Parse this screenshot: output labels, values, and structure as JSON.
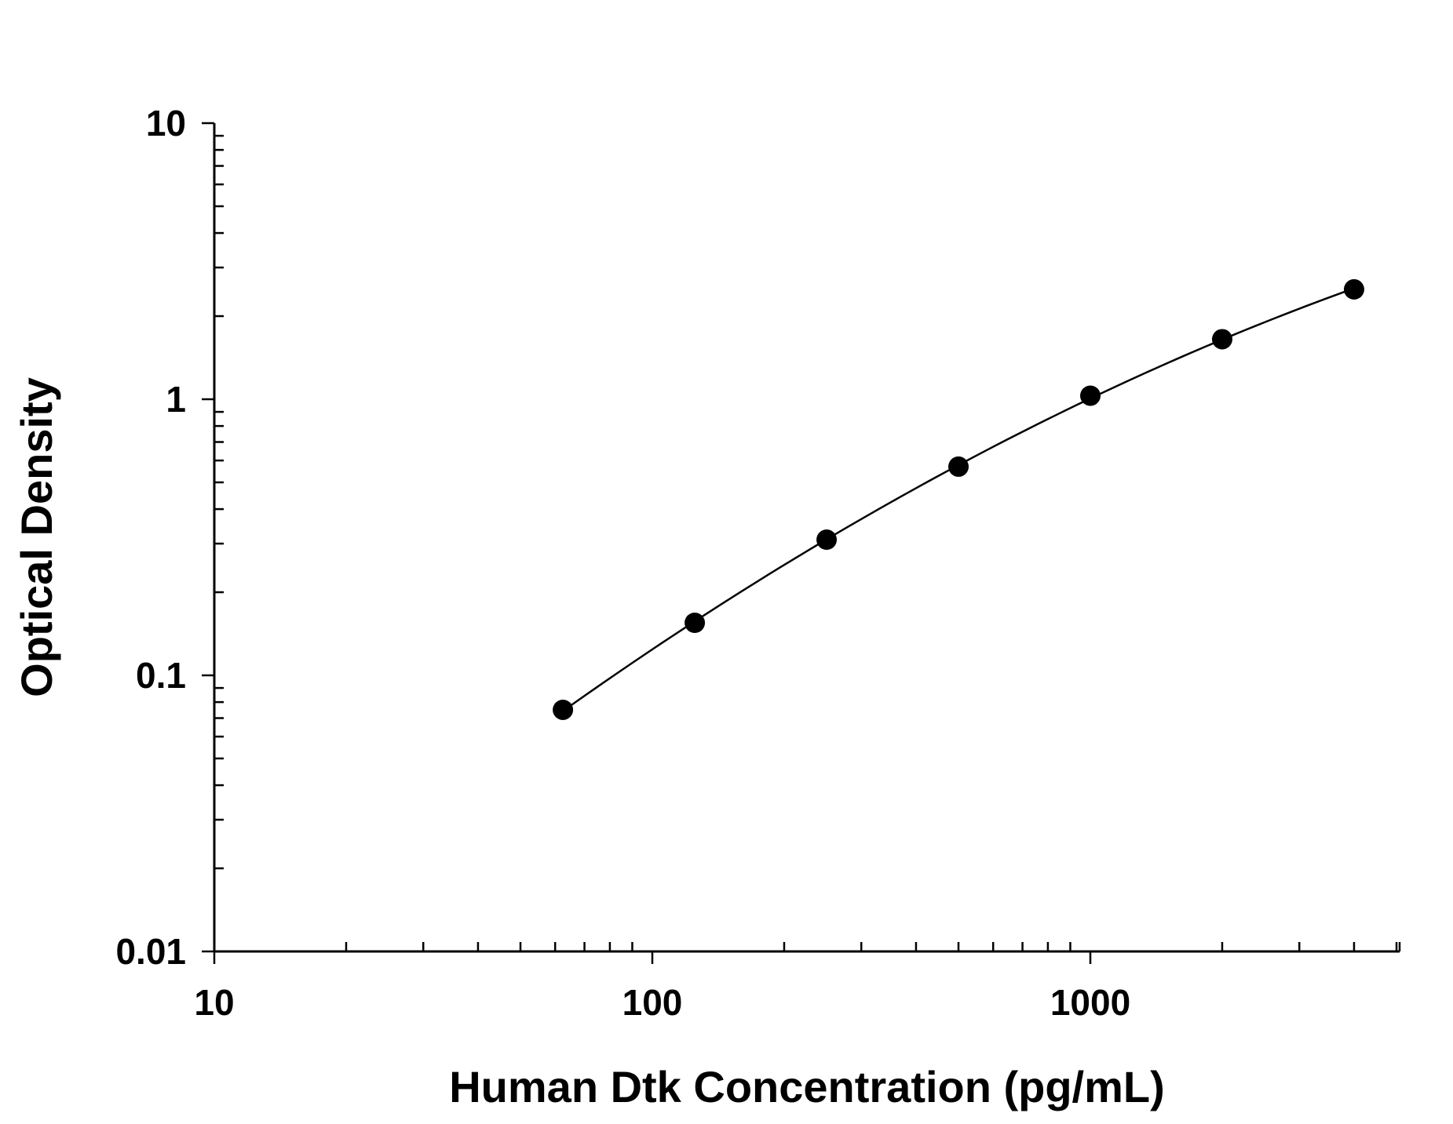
{
  "chart_data": {
    "type": "scatter",
    "title": "",
    "xlabel": "Human Dtk Concentration (pg/mL)",
    "ylabel": "Optical Density",
    "x_scale": "log",
    "y_scale": "log",
    "xlim": [
      10,
      5000
    ],
    "ylim": [
      0.01,
      10
    ],
    "x_ticks": [
      10,
      100,
      1000
    ],
    "x_tick_labels": [
      "10",
      "100",
      "1000"
    ],
    "y_ticks": [
      0.01,
      0.1,
      1,
      10
    ],
    "y_tick_labels": [
      "0.01",
      "0.1",
      "1",
      "10"
    ],
    "grid": false,
    "legend": "none",
    "fit_line": true,
    "series": [
      {
        "x": [
          62.5,
          125,
          250,
          500,
          1000,
          2000,
          4000
        ],
        "y": [
          0.075,
          0.155,
          0.31,
          0.57,
          1.03,
          1.65,
          2.5
        ]
      }
    ]
  }
}
